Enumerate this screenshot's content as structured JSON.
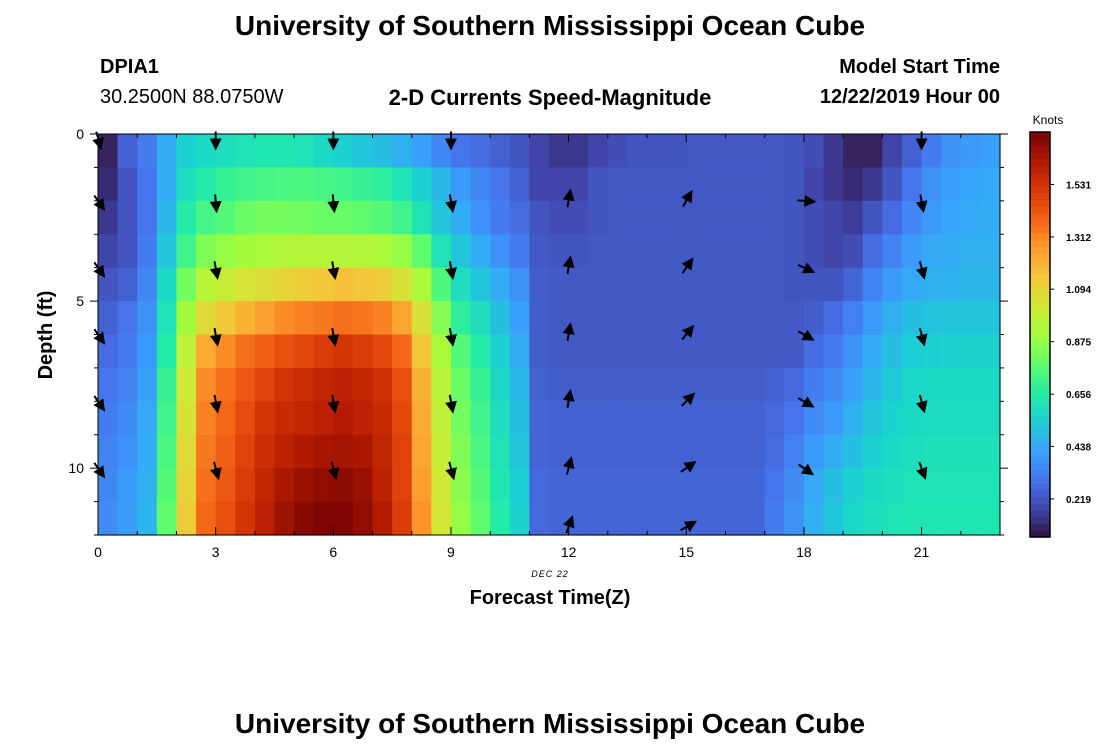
{
  "header": {
    "title": "University of Southern Mississippi Ocean Cube",
    "station_id": "DPIA1",
    "station_coords": "30.2500N  88.0750W",
    "plot_title": "2-D Currents Speed-Magnitude",
    "start_label": "Model Start Time",
    "start_value": "12/22/2019 Hour 00",
    "footer_title": "University of Southern Mississippi Ocean Cube"
  },
  "colors": {
    "arrow": "#000000",
    "frame": "#000000",
    "colormap": [
      "#30123b",
      "#4145ab",
      "#4675ed",
      "#39a2fc",
      "#1bcfd4",
      "#24eca6",
      "#61fc6c",
      "#a4fc3b",
      "#d1e834",
      "#f3c63a",
      "#fe9b2d",
      "#f36315",
      "#d93806",
      "#b11901",
      "#7a0402"
    ]
  },
  "chart_data": {
    "type": "heatmap",
    "title": "2-D Currents Speed-Magnitude",
    "xlabel": "Forecast Time(Z)",
    "ylabel": "Depth (ft)",
    "date_label": "DEC 22",
    "x_ticks": [
      "0",
      "3",
      "6",
      "9",
      "12",
      "15",
      "18",
      "21"
    ],
    "y_ticks": [
      "0",
      "5",
      "10"
    ],
    "xlim": [
      0,
      23
    ],
    "ylim": [
      0,
      12
    ],
    "colorbar": {
      "label": "Knots",
      "ticks": [
        "1.531",
        "1.312",
        "1.094",
        "0.875",
        "0.656",
        "0.438",
        "0.219"
      ],
      "tick_values": [
        1.531,
        1.312,
        1.094,
        0.875,
        0.656,
        0.438,
        0.219
      ],
      "range": [
        0.06,
        1.75
      ]
    },
    "hours": [
      0,
      0.5,
      1,
      1.5,
      2,
      2.5,
      3,
      3.5,
      4,
      4.5,
      5,
      5.5,
      6,
      6.5,
      7,
      7.5,
      8,
      8.5,
      9,
      9.5,
      10,
      10.5,
      11,
      11.5,
      12,
      12.5,
      13,
      13.5,
      14,
      14.5,
      15,
      15.5,
      16,
      16.5,
      17,
      17.5,
      18,
      18.5,
      19,
      19.5,
      20,
      20.5,
      21,
      21.5,
      22,
      22.5
    ],
    "depths_ft": [
      0,
      1,
      2,
      3,
      4,
      5,
      6,
      7,
      8,
      9,
      10,
      11
    ],
    "speed_knots_by_depth": [
      [
        0.1,
        0.25,
        0.32,
        0.45,
        0.55,
        0.58,
        0.6,
        0.62,
        0.64,
        0.64,
        0.62,
        0.58,
        0.55,
        0.52,
        0.5,
        0.46,
        0.42,
        0.35,
        0.3,
        0.28,
        0.25,
        0.22,
        0.18,
        0.15,
        0.15,
        0.18,
        0.2,
        0.22,
        0.22,
        0.22,
        0.23,
        0.23,
        0.23,
        0.23,
        0.23,
        0.22,
        0.2,
        0.15,
        0.1,
        0.1,
        0.18,
        0.25,
        0.32,
        0.38,
        0.4,
        0.42
      ],
      [
        0.12,
        0.22,
        0.3,
        0.45,
        0.6,
        0.66,
        0.7,
        0.72,
        0.73,
        0.74,
        0.74,
        0.73,
        0.72,
        0.7,
        0.68,
        0.62,
        0.55,
        0.48,
        0.4,
        0.35,
        0.3,
        0.25,
        0.18,
        0.18,
        0.18,
        0.22,
        0.23,
        0.23,
        0.23,
        0.23,
        0.23,
        0.23,
        0.23,
        0.23,
        0.23,
        0.22,
        0.18,
        0.15,
        0.12,
        0.15,
        0.22,
        0.3,
        0.38,
        0.42,
        0.43,
        0.44
      ],
      [
        0.15,
        0.22,
        0.3,
        0.48,
        0.66,
        0.73,
        0.76,
        0.8,
        0.82,
        0.82,
        0.81,
        0.8,
        0.8,
        0.78,
        0.76,
        0.72,
        0.62,
        0.52,
        0.45,
        0.38,
        0.32,
        0.28,
        0.22,
        0.2,
        0.2,
        0.22,
        0.23,
        0.23,
        0.23,
        0.23,
        0.23,
        0.23,
        0.23,
        0.23,
        0.23,
        0.22,
        0.2,
        0.18,
        0.16,
        0.22,
        0.28,
        0.35,
        0.4,
        0.43,
        0.44,
        0.45
      ],
      [
        0.18,
        0.22,
        0.32,
        0.52,
        0.72,
        0.84,
        0.88,
        0.9,
        0.92,
        0.94,
        0.95,
        0.95,
        0.95,
        0.94,
        0.92,
        0.88,
        0.78,
        0.62,
        0.52,
        0.45,
        0.38,
        0.32,
        0.23,
        0.22,
        0.22,
        0.23,
        0.23,
        0.23,
        0.23,
        0.23,
        0.23,
        0.23,
        0.23,
        0.23,
        0.23,
        0.22,
        0.2,
        0.18,
        0.2,
        0.28,
        0.34,
        0.4,
        0.44,
        0.45,
        0.46,
        0.46
      ],
      [
        0.22,
        0.25,
        0.35,
        0.58,
        0.82,
        0.95,
        1.0,
        1.04,
        1.07,
        1.1,
        1.12,
        1.14,
        1.16,
        1.15,
        1.12,
        1.05,
        0.92,
        0.75,
        0.6,
        0.52,
        0.45,
        0.38,
        0.24,
        0.23,
        0.23,
        0.23,
        0.23,
        0.23,
        0.23,
        0.23,
        0.23,
        0.23,
        0.23,
        0.23,
        0.23,
        0.22,
        0.22,
        0.22,
        0.26,
        0.34,
        0.4,
        0.44,
        0.46,
        0.47,
        0.48,
        0.48
      ],
      [
        0.25,
        0.3,
        0.38,
        0.62,
        0.9,
        1.08,
        1.14,
        1.2,
        1.25,
        1.3,
        1.32,
        1.34,
        1.36,
        1.35,
        1.32,
        1.24,
        1.05,
        0.85,
        0.68,
        0.6,
        0.5,
        0.42,
        0.24,
        0.23,
        0.23,
        0.23,
        0.23,
        0.23,
        0.23,
        0.23,
        0.23,
        0.23,
        0.23,
        0.23,
        0.23,
        0.23,
        0.24,
        0.28,
        0.33,
        0.4,
        0.46,
        0.5,
        0.51,
        0.52,
        0.52,
        0.52
      ],
      [
        0.28,
        0.32,
        0.4,
        0.66,
        0.98,
        1.22,
        1.3,
        1.36,
        1.4,
        1.44,
        1.47,
        1.5,
        1.52,
        1.5,
        1.46,
        1.38,
        1.15,
        0.92,
        0.76,
        0.66,
        0.55,
        0.45,
        0.24,
        0.23,
        0.23,
        0.23,
        0.23,
        0.23,
        0.23,
        0.23,
        0.23,
        0.23,
        0.23,
        0.23,
        0.23,
        0.23,
        0.28,
        0.32,
        0.38,
        0.45,
        0.5,
        0.54,
        0.55,
        0.56,
        0.56,
        0.56
      ],
      [
        0.3,
        0.34,
        0.42,
        0.7,
        1.02,
        1.3,
        1.36,
        1.42,
        1.48,
        1.52,
        1.55,
        1.58,
        1.6,
        1.58,
        1.54,
        1.44,
        1.2,
        0.96,
        0.8,
        0.7,
        0.58,
        0.48,
        0.25,
        0.24,
        0.24,
        0.24,
        0.24,
        0.24,
        0.24,
        0.24,
        0.24,
        0.24,
        0.24,
        0.24,
        0.25,
        0.27,
        0.32,
        0.36,
        0.42,
        0.48,
        0.53,
        0.57,
        0.58,
        0.58,
        0.58,
        0.58
      ],
      [
        0.32,
        0.36,
        0.44,
        0.72,
        1.05,
        1.32,
        1.38,
        1.45,
        1.52,
        1.56,
        1.58,
        1.6,
        1.62,
        1.6,
        1.56,
        1.46,
        1.22,
        0.98,
        0.82,
        0.72,
        0.6,
        0.5,
        0.26,
        0.25,
        0.25,
        0.25,
        0.25,
        0.25,
        0.25,
        0.25,
        0.25,
        0.25,
        0.25,
        0.25,
        0.27,
        0.3,
        0.36,
        0.4,
        0.46,
        0.52,
        0.56,
        0.58,
        0.59,
        0.59,
        0.59,
        0.59
      ],
      [
        0.34,
        0.38,
        0.45,
        0.74,
        1.08,
        1.34,
        1.4,
        1.48,
        1.55,
        1.6,
        1.63,
        1.65,
        1.66,
        1.64,
        1.58,
        1.48,
        1.24,
        1.0,
        0.84,
        0.74,
        0.62,
        0.52,
        0.26,
        0.25,
        0.25,
        0.25,
        0.25,
        0.25,
        0.25,
        0.25,
        0.25,
        0.25,
        0.25,
        0.25,
        0.28,
        0.33,
        0.4,
        0.45,
        0.5,
        0.55,
        0.58,
        0.6,
        0.61,
        0.61,
        0.61,
        0.61
      ],
      [
        0.35,
        0.4,
        0.46,
        0.76,
        1.1,
        1.36,
        1.42,
        1.5,
        1.58,
        1.64,
        1.68,
        1.7,
        1.71,
        1.68,
        1.6,
        1.48,
        1.26,
        1.02,
        0.86,
        0.76,
        0.64,
        0.54,
        0.27,
        0.26,
        0.26,
        0.26,
        0.26,
        0.26,
        0.26,
        0.26,
        0.26,
        0.26,
        0.26,
        0.26,
        0.3,
        0.36,
        0.44,
        0.5,
        0.55,
        0.58,
        0.6,
        0.62,
        0.62,
        0.62,
        0.62,
        0.62
      ],
      [
        0.36,
        0.41,
        0.47,
        0.78,
        1.12,
        1.38,
        1.44,
        1.52,
        1.6,
        1.67,
        1.72,
        1.74,
        1.74,
        1.7,
        1.62,
        1.5,
        1.28,
        1.03,
        0.88,
        0.78,
        0.66,
        0.56,
        0.27,
        0.26,
        0.26,
        0.26,
        0.26,
        0.26,
        0.26,
        0.26,
        0.26,
        0.26,
        0.26,
        0.26,
        0.32,
        0.38,
        0.46,
        0.52,
        0.57,
        0.6,
        0.62,
        0.63,
        0.63,
        0.63,
        0.63,
        0.63
      ]
    ],
    "vector_hours": [
      0,
      3,
      6,
      9,
      12,
      15,
      18,
      21
    ],
    "vector_depths_ft": [
      0,
      2,
      4,
      6,
      8,
      10,
      12
    ],
    "vector_direction_deg": [
      [
        165,
        180,
        180,
        180,
        null,
        null,
        null,
        180
      ],
      [
        145,
        175,
        175,
        170,
        10,
        30,
        95,
        170
      ],
      [
        145,
        170,
        170,
        170,
        10,
        35,
        115,
        165
      ],
      [
        145,
        170,
        170,
        170,
        10,
        40,
        120,
        165
      ],
      [
        145,
        170,
        170,
        170,
        10,
        45,
        120,
        165
      ],
      [
        145,
        165,
        165,
        165,
        15,
        55,
        125,
        160
      ],
      [
        null,
        null,
        null,
        null,
        20,
        60,
        null,
        null
      ]
    ]
  }
}
